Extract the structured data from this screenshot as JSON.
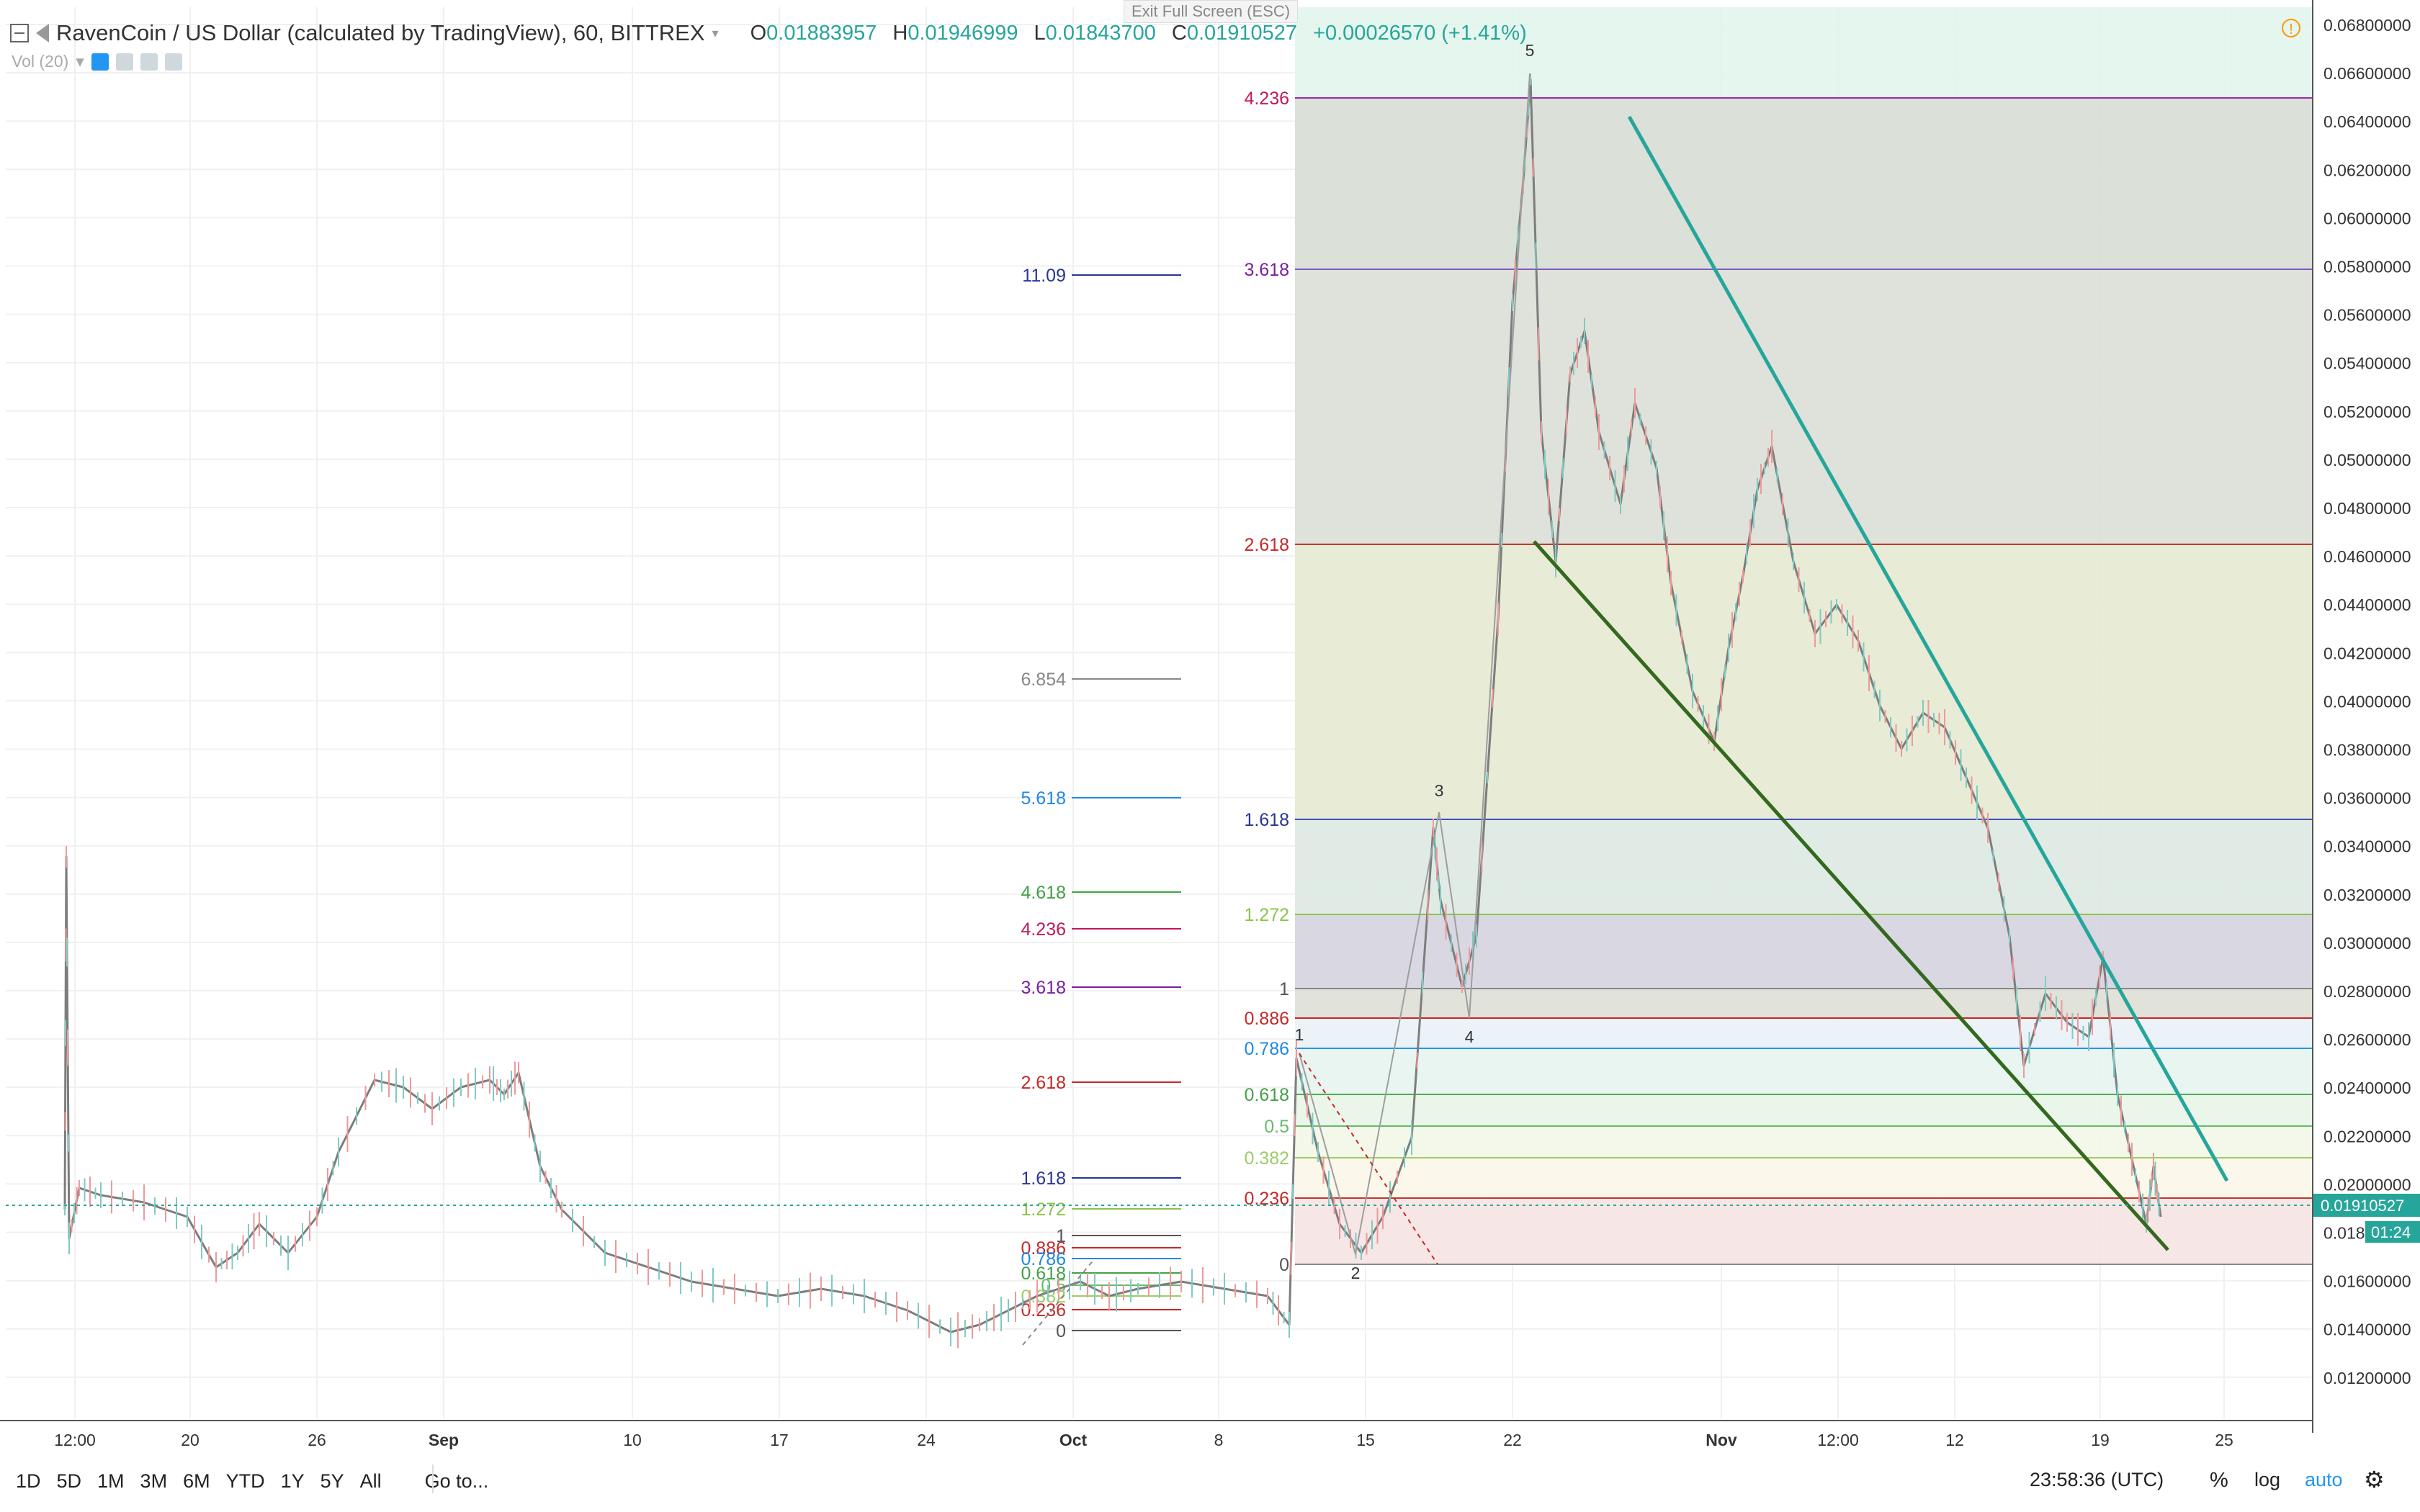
{
  "window": {
    "exit_fullscreen": "Exit Full Screen (ESC)"
  },
  "header": {
    "symbol_title": "RavenCoin / US Dollar (calculated by TradingView), 60, BITTREX",
    "o_label": "O",
    "o_value": "0.01883957",
    "h_label": "H",
    "h_value": "0.01946999",
    "l_label": "L",
    "l_value": "0.01843700",
    "c_label": "C",
    "c_value": "0.01910527",
    "change": "+0.00026570 (+1.41%)",
    "volume_indicator": "Vol (20)"
  },
  "price_axis": {
    "ticks": [
      "0.06800000",
      "0.06600000",
      "0.06400000",
      "0.06200000",
      "0.06000000",
      "0.05800000",
      "0.05600000",
      "0.05400000",
      "0.05200000",
      "0.05000000",
      "0.04800000",
      "0.04600000",
      "0.04400000",
      "0.04200000",
      "0.04000000",
      "0.03800000",
      "0.03600000",
      "0.03400000",
      "0.03200000",
      "0.03000000",
      "0.02800000",
      "0.02600000",
      "0.02400000",
      "0.02200000",
      "0.02000000",
      "0.018",
      "0.01600000",
      "0.01400000",
      "0.01200000"
    ],
    "current_price": "0.01910527",
    "countdown": "01:24"
  },
  "time_axis": {
    "labels": [
      "12:00",
      "20",
      "26",
      "Sep",
      "10",
      "17",
      "24",
      "Oct",
      "8",
      "15",
      "22",
      "Nov",
      "12:00",
      "12",
      "19",
      "25"
    ]
  },
  "fib_left": {
    "levels": [
      "11.09",
      "6.854",
      "5.618",
      "4.618",
      "4.236",
      "3.618",
      "2.618",
      "1.618",
      "1.272",
      "1",
      "0.886",
      "0.786",
      "0.618",
      "0.5",
      "0.382",
      "0.236",
      "0"
    ]
  },
  "fib_right": {
    "levels": [
      "4.236",
      "3.618",
      "2.618",
      "1.618",
      "1.272",
      "1",
      "0.886",
      "0.786",
      "0.618",
      "0.5",
      "0.382",
      "0.236",
      "0"
    ]
  },
  "wave_labels": [
    "1",
    "2",
    "3",
    "4",
    "5"
  ],
  "colors": {
    "up": "#26a69a",
    "down": "#ef5350",
    "candle": "#7d7d7d",
    "channel_upper": "#26a69a",
    "channel_lower": "#33691e"
  },
  "toolbar": {
    "timeframes": [
      "1D",
      "5D",
      "1M",
      "3M",
      "6M",
      "YTD",
      "1Y",
      "5Y",
      "All"
    ],
    "goto": "Go to...",
    "clock": "23:58:36 (UTC)",
    "percent": "%",
    "log": "log",
    "auto": "auto",
    "settings_icon": "gear-icon"
  }
}
